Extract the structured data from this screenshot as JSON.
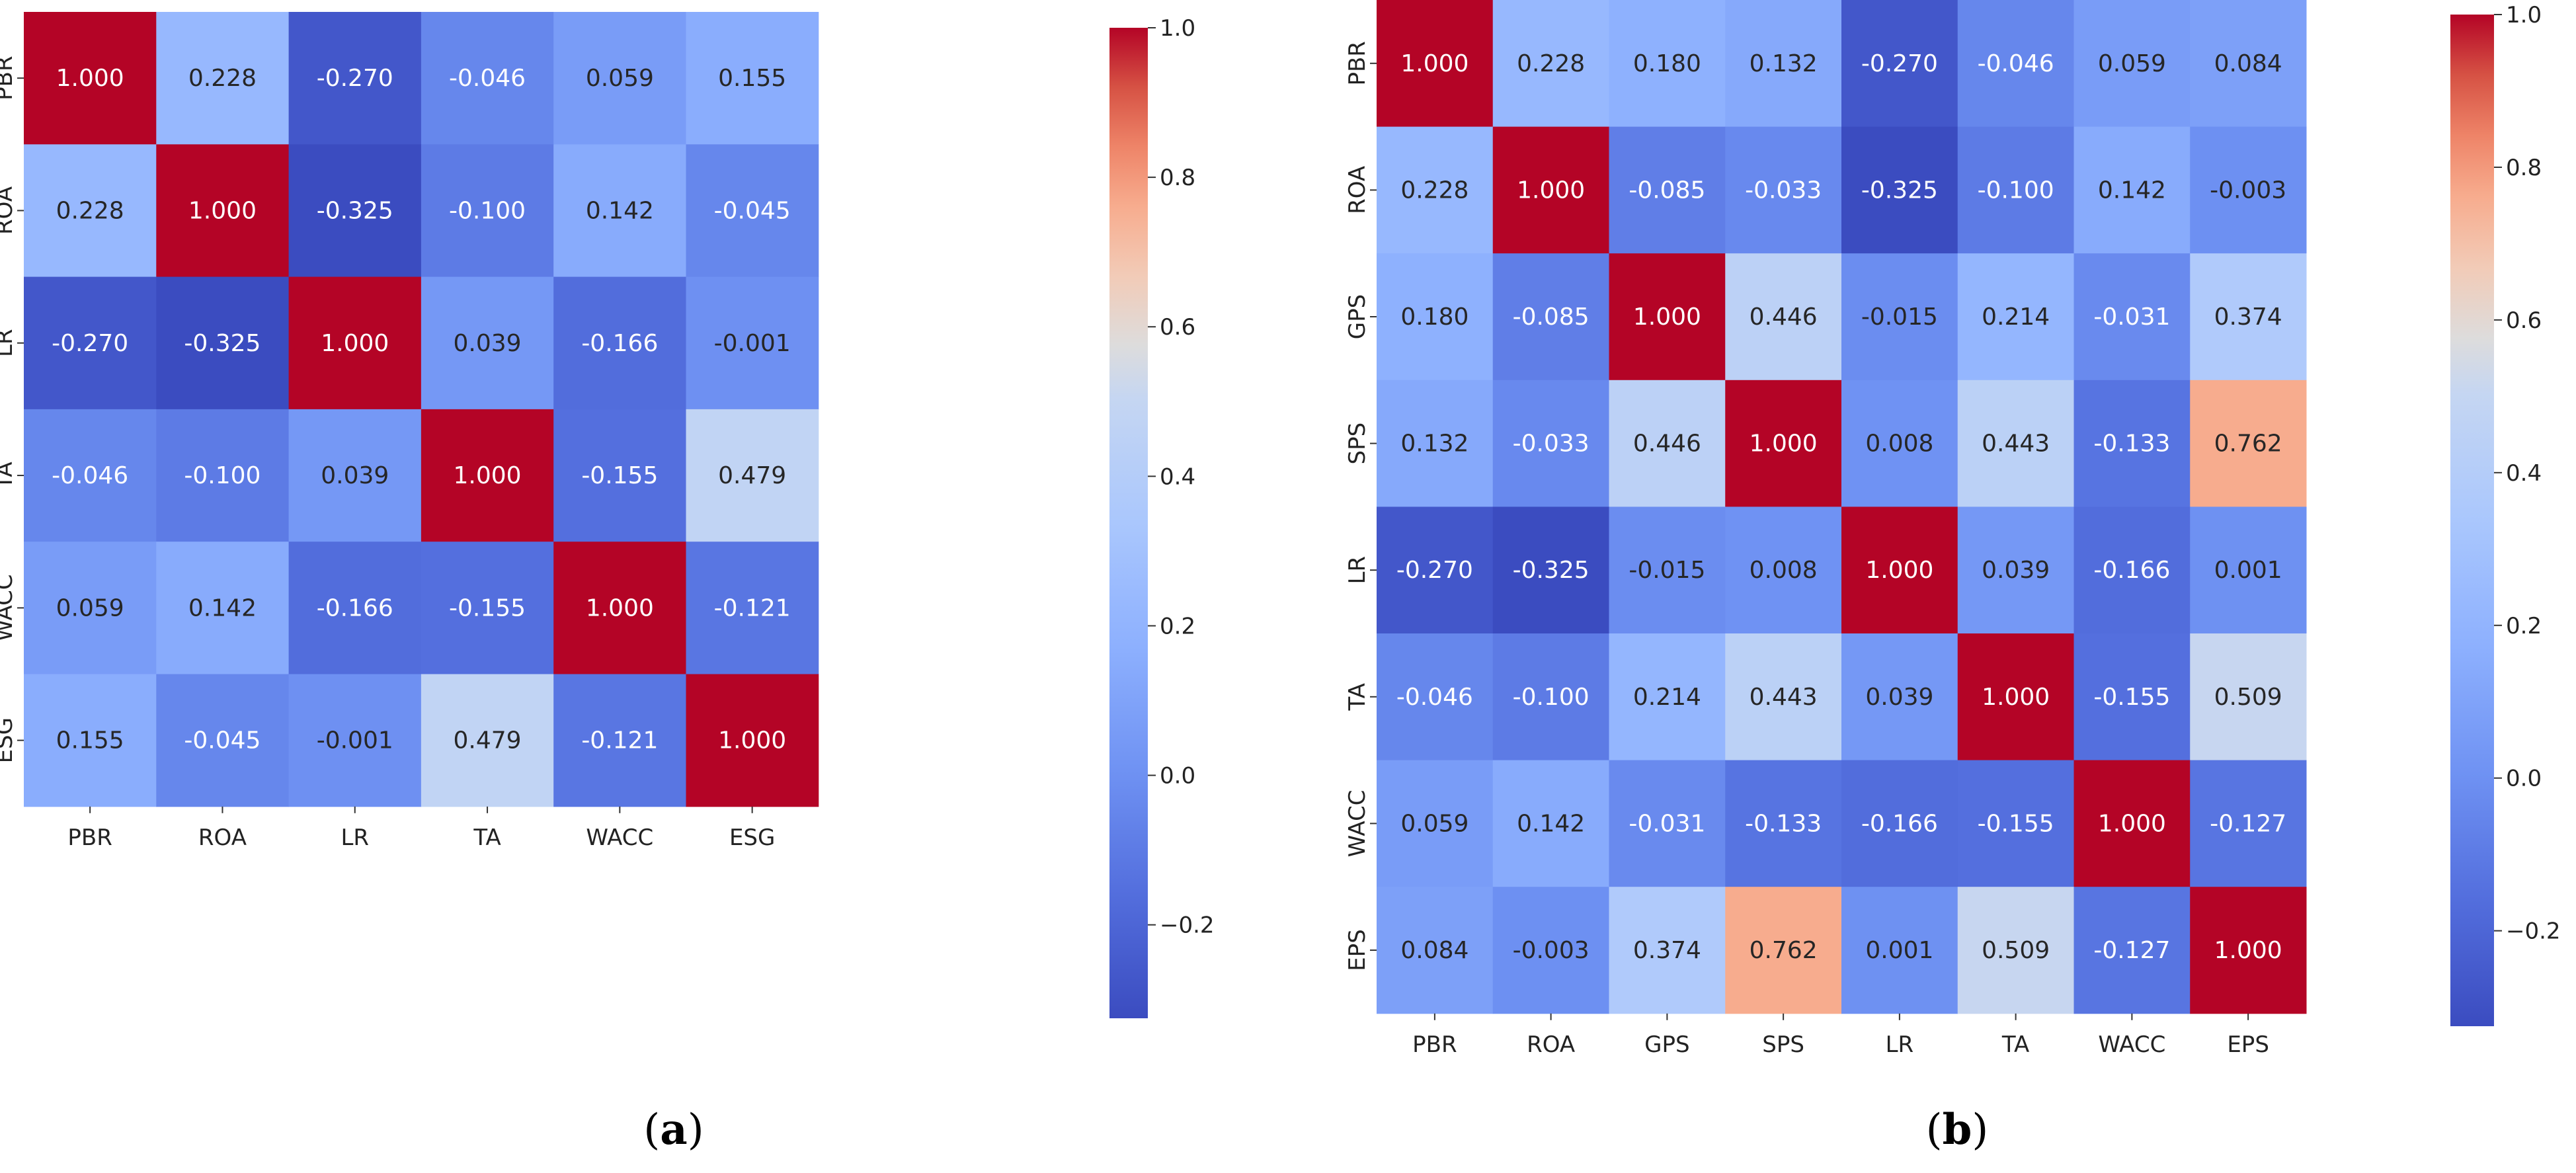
{
  "chart_data": [
    {
      "type": "heatmap",
      "panel_label": {
        "open": "(",
        "letter": "a",
        "close": ")"
      },
      "title": "",
      "xlabel": "",
      "ylabel": "",
      "x_labels": [
        "PBR",
        "ROA",
        "LR",
        "TA",
        "WACC",
        "ESG"
      ],
      "y_labels": [
        "PBR",
        "ROA",
        "LR",
        "TA",
        "WACC",
        "ESG"
      ],
      "values": [
        [
          1.0,
          0.228,
          -0.27,
          -0.046,
          0.059,
          0.155
        ],
        [
          0.228,
          1.0,
          -0.325,
          -0.1,
          0.142,
          -0.045
        ],
        [
          -0.27,
          -0.325,
          1.0,
          0.039,
          -0.166,
          -0.001
        ],
        [
          -0.046,
          -0.1,
          0.039,
          1.0,
          -0.155,
          0.479
        ],
        [
          0.059,
          0.142,
          -0.166,
          -0.155,
          1.0,
          -0.121
        ],
        [
          0.155,
          -0.045,
          -0.001,
          0.479,
          -0.121,
          1.0
        ]
      ],
      "colormap": "coolwarm",
      "vmin": -0.325,
      "vmax": 1.0,
      "colorbar_ticks": [
        "−0.2",
        "0.0",
        "0.2",
        "0.4",
        "0.6",
        "0.8",
        "1.0"
      ],
      "colorbar_tick_values": [
        -0.2,
        0.0,
        0.2,
        0.4,
        0.6,
        0.8,
        1.0
      ]
    },
    {
      "type": "heatmap",
      "panel_label": {
        "open": "(",
        "letter": "b",
        "close": ")"
      },
      "title": "",
      "xlabel": "",
      "ylabel": "",
      "x_labels": [
        "PBR",
        "ROA",
        "GPS",
        "SPS",
        "LR",
        "TA",
        "WACC",
        "EPS"
      ],
      "y_labels": [
        "PBR",
        "ROA",
        "GPS",
        "SPS",
        "LR",
        "TA",
        "WACC",
        "EPS"
      ],
      "values": [
        [
          1.0,
          0.228,
          0.18,
          0.132,
          -0.27,
          -0.046,
          0.059,
          0.084
        ],
        [
          0.228,
          1.0,
          -0.085,
          -0.033,
          -0.325,
          -0.1,
          0.142,
          -0.003
        ],
        [
          0.18,
          -0.085,
          1.0,
          0.446,
          -0.015,
          0.214,
          -0.031,
          0.374
        ],
        [
          0.132,
          -0.033,
          0.446,
          1.0,
          0.008,
          0.443,
          -0.133,
          0.762
        ],
        [
          -0.27,
          -0.325,
          -0.015,
          0.008,
          1.0,
          0.039,
          -0.166,
          0.001
        ],
        [
          -0.046,
          -0.1,
          0.214,
          0.443,
          0.039,
          1.0,
          -0.155,
          0.509
        ],
        [
          0.059,
          0.142,
          -0.031,
          -0.133,
          -0.166,
          -0.155,
          1.0,
          -0.127
        ],
        [
          0.084,
          -0.003,
          0.374,
          0.762,
          0.001,
          0.509,
          -0.127,
          1.0
        ]
      ],
      "colormap": "coolwarm",
      "vmin": -0.325,
      "vmax": 1.0,
      "colorbar_ticks": [
        "−0.2",
        "0.0",
        "0.2",
        "0.4",
        "0.6",
        "0.8",
        "1.0"
      ],
      "colorbar_tick_values": [
        -0.2,
        0.0,
        0.2,
        0.4,
        0.6,
        0.8,
        1.0
      ]
    }
  ]
}
